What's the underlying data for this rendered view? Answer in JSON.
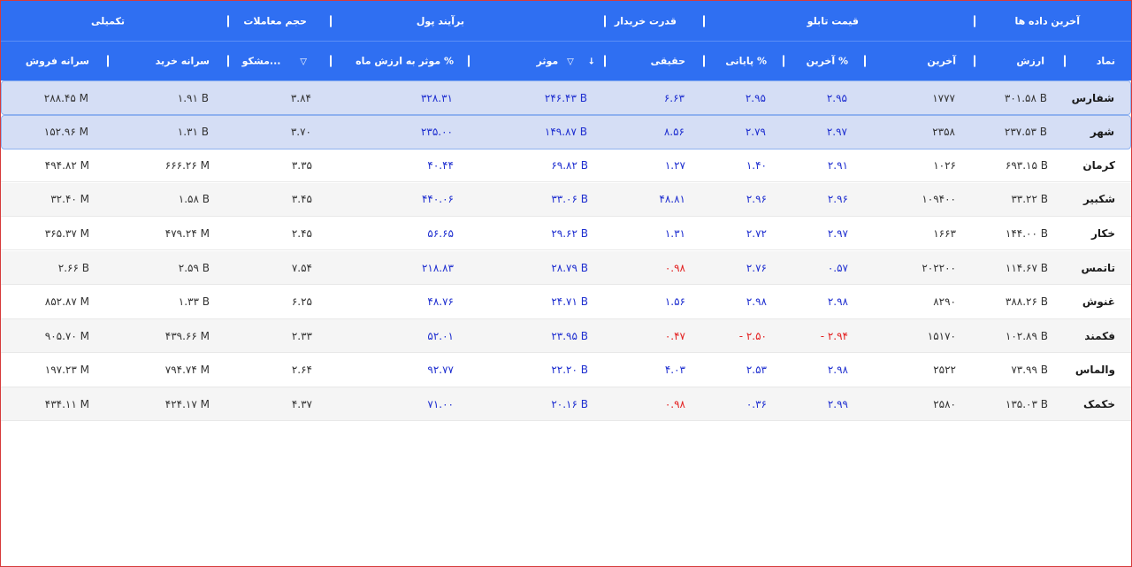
{
  "group_headers": {
    "latest_data": "آخرین داده ها",
    "board_price": "قیمت تابلو",
    "buyer_power": "قدرت خریدار",
    "money_flow": "برآیند پول",
    "trade_volume": "حجم معاملات",
    "supplementary": "تکمیلی"
  },
  "columns": {
    "symbol": "نماد",
    "value": "ارزش",
    "last": "آخرین",
    "last_pct": "آخرین %",
    "close_pct": "پایانی %",
    "real": "حقیقی",
    "effective": "موثر",
    "effective_month_pct": "موثر به ارزش ماه %",
    "suspicious": "مشکو...",
    "buy_per_capita": "سرانه خرید",
    "sell_per_capita": "سرانه فروش"
  },
  "colors": {
    "header_bg": "#2f6ff2",
    "selected_row": "#d5def5",
    "positive": "#1f2fd0",
    "negative": "#e32222"
  },
  "rows": [
    {
      "symbol": "شفارس",
      "value": "۳۰۱.۵۸ B",
      "last": "۱۷۷۷",
      "last_pct": "۲.۹۵",
      "close_pct": "۲.۹۵",
      "real": "۶.۶۳",
      "effective": "۲۴۶.۴۳ B",
      "effective_month": "۳۲۸.۳۱",
      "suspicious": "۳.۸۴",
      "buy": "۱.۹۱ B",
      "sell": "۲۸۸.۴۵ M",
      "selected": true
    },
    {
      "symbol": "شهر",
      "value": "۲۳۷.۵۳ B",
      "last": "۲۳۵۸",
      "last_pct": "۲.۹۷",
      "close_pct": "۲.۷۹",
      "real": "۸.۵۶",
      "effective": "۱۴۹.۸۷ B",
      "effective_month": "۲۳۵.۰۰",
      "suspicious": "۳.۷۰",
      "buy": "۱.۳۱ B",
      "sell": "۱۵۲.۹۶ M",
      "selected": true
    },
    {
      "symbol": "کرمان",
      "value": "۶۹۳.۱۵ B",
      "last": "۱۰۲۶",
      "last_pct": "۲.۹۱",
      "close_pct": "۱.۴۰",
      "real": "۱.۲۷",
      "effective": "۶۹.۸۲ B",
      "effective_month": "۴۰.۴۴",
      "suspicious": "۳.۳۵",
      "buy": "۶۶۶.۲۶ M",
      "sell": "۴۹۴.۸۲ M"
    },
    {
      "symbol": "شکبیر",
      "value": "۳۳.۲۲ B",
      "last": "۱۰۹۴۰۰",
      "last_pct": "۲.۹۶",
      "close_pct": "۲.۹۶",
      "real": "۴۸.۸۱",
      "effective": "۳۳.۰۶ B",
      "effective_month": "۴۴۰.۰۶",
      "suspicious": "۳.۴۵",
      "buy": "۱.۵۸ B",
      "sell": "۳۲.۴۰ M"
    },
    {
      "symbol": "خکار",
      "value": "۱۴۴.۰۰ B",
      "last": "۱۶۶۳",
      "last_pct": "۲.۹۷",
      "close_pct": "۲.۷۲",
      "real": "۱.۳۱",
      "effective": "۲۹.۶۲ B",
      "effective_month": "۵۶.۶۵",
      "suspicious": "۲.۴۵",
      "buy": "۴۷۹.۲۴ M",
      "sell": "۳۶۵.۳۷ M"
    },
    {
      "symbol": "تاتمس",
      "value": "۱۱۴.۶۷ B",
      "last": "۲۰۲۲۰۰",
      "last_pct": "۰.۵۷",
      "close_pct": "۲.۷۶",
      "real": "۰.۹۸",
      "real_neg": true,
      "effective": "۲۸.۷۹ B",
      "effective_month": "۲۱۸.۸۳",
      "suspicious": "۷.۵۴",
      "buy": "۲.۵۹ B",
      "sell": "۲.۶۶ B"
    },
    {
      "symbol": "غنوش",
      "value": "۳۸۸.۲۶ B",
      "last": "۸۲۹۰",
      "last_pct": "۲.۹۸",
      "close_pct": "۲.۹۸",
      "real": "۱.۵۶",
      "effective": "۲۴.۷۱ B",
      "effective_month": "۴۸.۷۶",
      "suspicious": "۶.۲۵",
      "buy": "۱.۳۳ B",
      "sell": "۸۵۲.۸۷ M"
    },
    {
      "symbol": "فکمند",
      "value": "۱۰۲.۸۹ B",
      "last": "۱۵۱۷۰",
      "last_pct": "- ۲.۹۴",
      "last_pct_neg": true,
      "close_pct": "- ۲.۵۰",
      "close_neg": true,
      "real": "۰.۴۷",
      "real_neg": true,
      "effective": "۲۳.۹۵ B",
      "effective_month": "۵۲.۰۱",
      "suspicious": "۲.۳۳",
      "buy": "۴۳۹.۶۶ M",
      "sell": "۹۰۵.۷۰ M"
    },
    {
      "symbol": "والماس",
      "value": "۷۳.۹۹ B",
      "last": "۲۵۲۲",
      "last_pct": "۲.۹۸",
      "close_pct": "۲.۵۳",
      "real": "۴.۰۳",
      "effective": "۲۲.۲۰ B",
      "effective_month": "۹۲.۷۷",
      "suspicious": "۲.۶۴",
      "buy": "۷۹۴.۷۴ M",
      "sell": "۱۹۷.۲۳ M"
    },
    {
      "symbol": "خکمک",
      "value": "۱۳۵.۰۳ B",
      "last": "۲۵۸۰",
      "last_pct": "۲.۹۹",
      "close_pct": "۰.۳۶",
      "real": "۰.۹۸",
      "real_neg": true,
      "effective": "۲۰.۱۶ B",
      "effective_month": "۷۱.۰۰",
      "suspicious": "۴.۳۷",
      "buy": "۴۲۴.۱۷ M",
      "sell": "۴۳۴.۱۱ M"
    }
  ]
}
